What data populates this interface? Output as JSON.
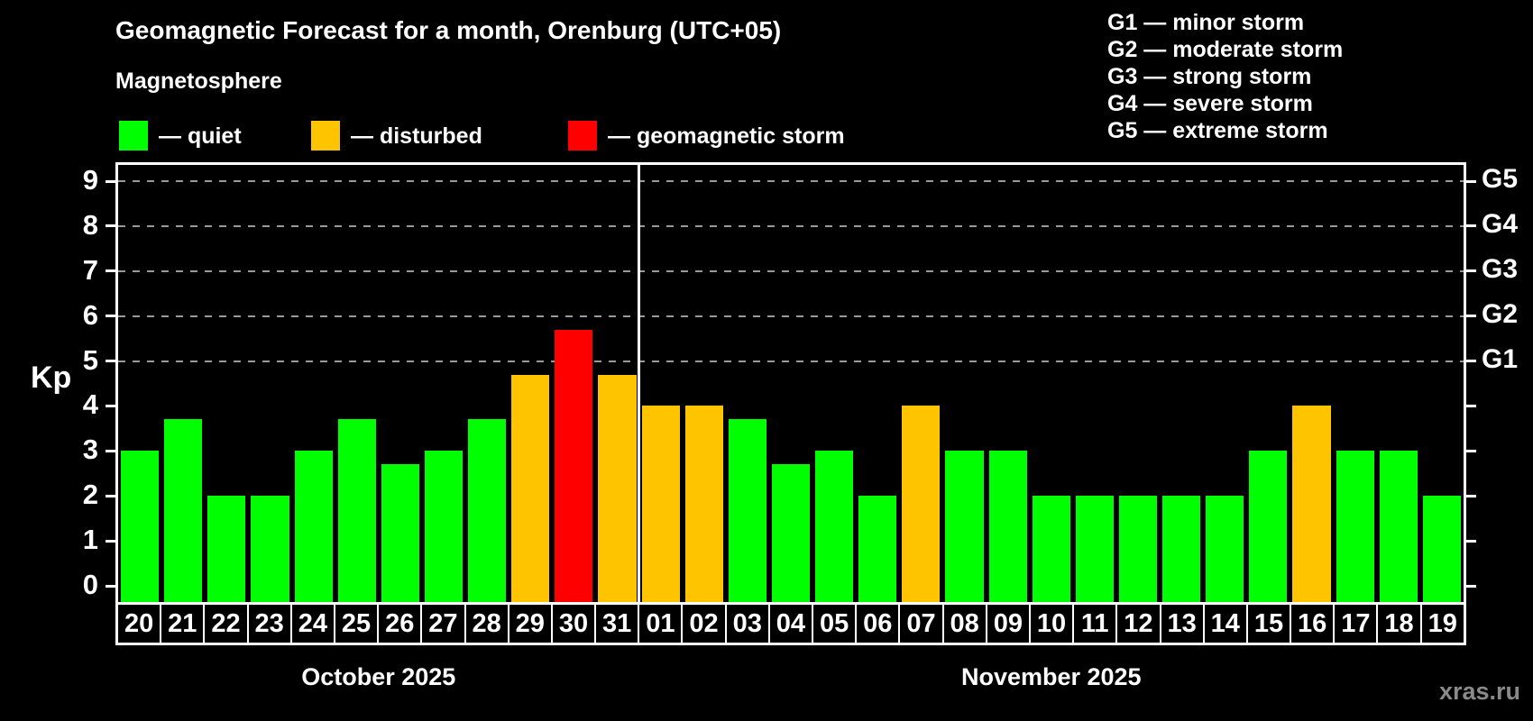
{
  "header": {
    "title": "Geomagnetic Forecast for a month, Orenburg (UTC+05)",
    "subtitle": "Magnetosphere"
  },
  "legend": [
    {
      "status": "quiet",
      "label": "— quiet",
      "color": "#00FF00"
    },
    {
      "status": "disturbed",
      "label": "— disturbed",
      "color": "#FFC400"
    },
    {
      "status": "storm",
      "label": "— geomagnetic storm",
      "color": "#FF0000"
    }
  ],
  "g_scale_legend": [
    "G1 — minor storm",
    "G2 — moderate storm",
    "G3 — strong storm",
    "G4 — severe storm",
    "G5 — extreme storm"
  ],
  "watermark": "xras.ru",
  "chart_data": {
    "type": "bar",
    "title": "Geomagnetic Forecast for a month, Orenburg (UTC+05)",
    "ylabel": "Kp",
    "ylim": [
      0,
      9
    ],
    "yticks": [
      0,
      1,
      2,
      3,
      4,
      5,
      6,
      7,
      8,
      9
    ],
    "grid_levels": [
      5,
      6,
      7,
      8,
      9
    ],
    "grid_on": true,
    "right_axis": [
      {
        "label": "G1",
        "kp": 5
      },
      {
        "label": "G2",
        "kp": 6
      },
      {
        "label": "G3",
        "kp": 7
      },
      {
        "label": "G4",
        "kp": 8
      },
      {
        "label": "G5",
        "kp": 9
      }
    ],
    "status_colors": {
      "quiet": "#00FF00",
      "disturbed": "#FFC400",
      "storm": "#FF0000"
    },
    "months": [
      {
        "label": "October 2025",
        "start_index": 0,
        "end_index": 11
      },
      {
        "label": "November 2025",
        "start_index": 12,
        "end_index": 30
      }
    ],
    "month_separator_after_index": 11,
    "bars": [
      {
        "day": "20",
        "value": 3.0,
        "status": "quiet"
      },
      {
        "day": "21",
        "value": 3.7,
        "status": "quiet"
      },
      {
        "day": "22",
        "value": 2.0,
        "status": "quiet"
      },
      {
        "day": "23",
        "value": 2.0,
        "status": "quiet"
      },
      {
        "day": "24",
        "value": 3.0,
        "status": "quiet"
      },
      {
        "day": "25",
        "value": 3.7,
        "status": "quiet"
      },
      {
        "day": "26",
        "value": 2.7,
        "status": "quiet"
      },
      {
        "day": "27",
        "value": 3.0,
        "status": "quiet"
      },
      {
        "day": "28",
        "value": 3.7,
        "status": "quiet"
      },
      {
        "day": "29",
        "value": 4.7,
        "status": "disturbed"
      },
      {
        "day": "30",
        "value": 5.7,
        "status": "storm"
      },
      {
        "day": "31",
        "value": 4.7,
        "status": "disturbed"
      },
      {
        "day": "01",
        "value": 4.0,
        "status": "disturbed"
      },
      {
        "day": "02",
        "value": 4.0,
        "status": "disturbed"
      },
      {
        "day": "03",
        "value": 3.7,
        "status": "quiet"
      },
      {
        "day": "04",
        "value": 2.7,
        "status": "quiet"
      },
      {
        "day": "05",
        "value": 3.0,
        "status": "quiet"
      },
      {
        "day": "06",
        "value": 2.0,
        "status": "quiet"
      },
      {
        "day": "07",
        "value": 4.0,
        "status": "disturbed"
      },
      {
        "day": "08",
        "value": 3.0,
        "status": "quiet"
      },
      {
        "day": "09",
        "value": 3.0,
        "status": "quiet"
      },
      {
        "day": "10",
        "value": 2.0,
        "status": "quiet"
      },
      {
        "day": "11",
        "value": 2.0,
        "status": "quiet"
      },
      {
        "day": "12",
        "value": 2.0,
        "status": "quiet"
      },
      {
        "day": "13",
        "value": 2.0,
        "status": "quiet"
      },
      {
        "day": "14",
        "value": 2.0,
        "status": "quiet"
      },
      {
        "day": "15",
        "value": 3.0,
        "status": "quiet"
      },
      {
        "day": "16",
        "value": 4.0,
        "status": "disturbed"
      },
      {
        "day": "17",
        "value": 3.0,
        "status": "quiet"
      },
      {
        "day": "18",
        "value": 3.0,
        "status": "quiet"
      },
      {
        "day": "19",
        "value": 2.0,
        "status": "quiet"
      }
    ]
  }
}
